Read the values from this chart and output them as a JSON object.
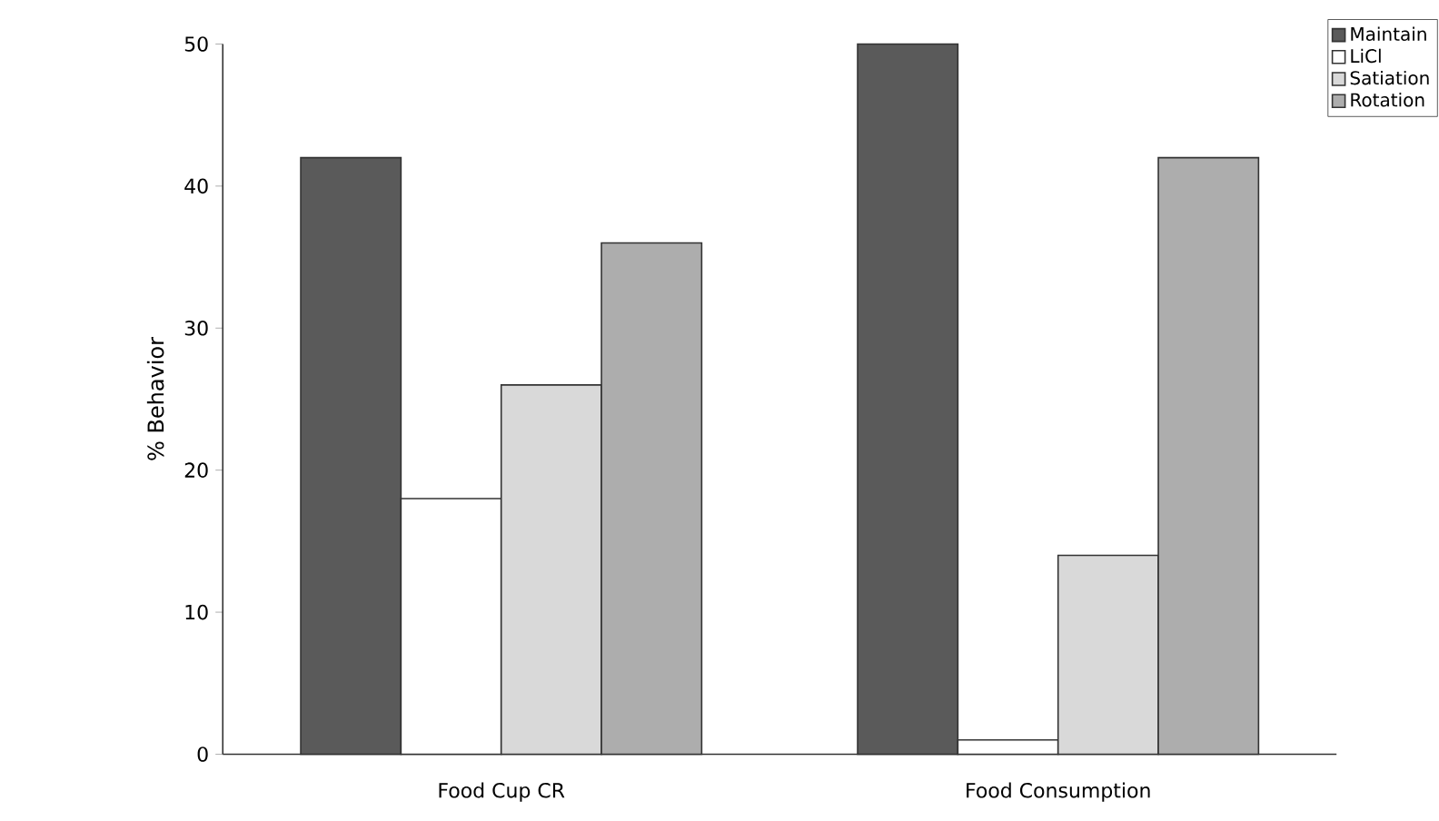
{
  "chart_data": {
    "type": "bar",
    "ylabel": "% Behavior",
    "categories": [
      "Food Cup CR",
      "Food Consumption"
    ],
    "series": [
      {
        "name": "Maintain",
        "color": "#5a5a5a",
        "values": [
          42,
          50
        ]
      },
      {
        "name": "LiCl",
        "color": "#ffffff",
        "values": [
          18,
          1
        ]
      },
      {
        "name": "Satiation",
        "color": "#d9d9d9",
        "values": [
          26,
          14
        ]
      },
      {
        "name": "Rotation",
        "color": "#adadad",
        "values": [
          36,
          42
        ]
      }
    ],
    "ylim": [
      0,
      50
    ],
    "yticks": [
      0,
      10,
      20,
      30,
      40,
      50
    ],
    "grid": false,
    "legend": "top right"
  }
}
